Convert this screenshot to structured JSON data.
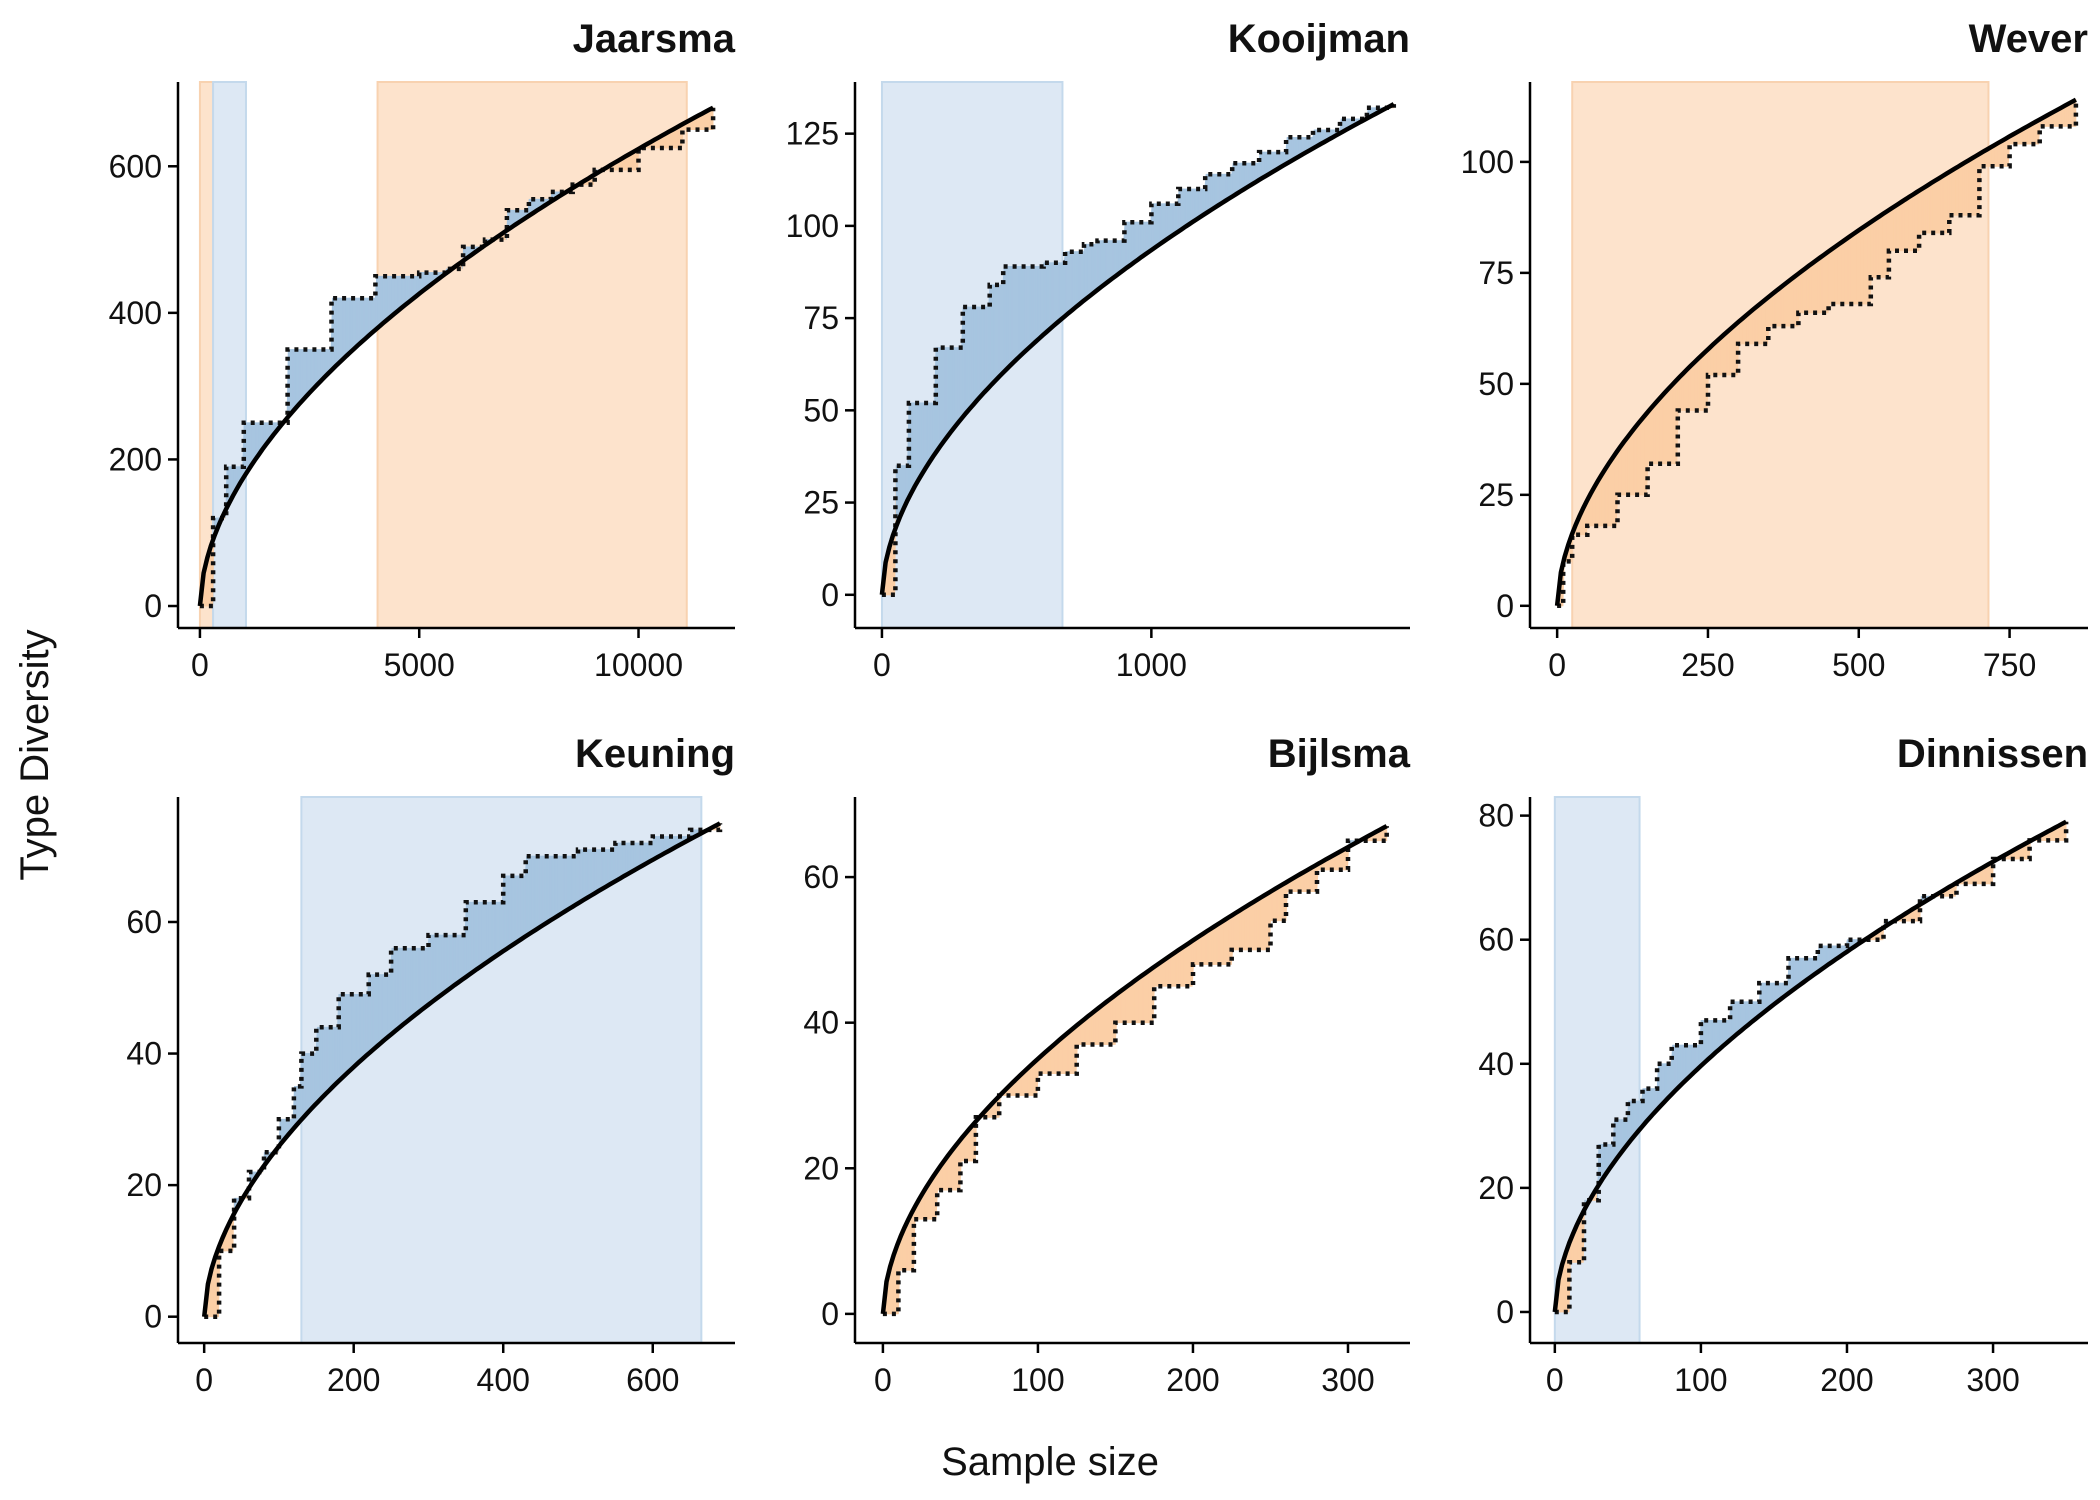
{
  "figure": {
    "xlabel": "Sample size",
    "ylabel": "Type Diversity"
  },
  "colors": {
    "curve": "#000000",
    "observed": "#111111",
    "above_fill": "#a7c5e0",
    "below_fill": "#fbcfa6",
    "above_span": "#dde8f4",
    "below_span": "#fde3cc"
  },
  "chart_data": [
    {
      "type": "line",
      "title": "Jaarsma",
      "xlim": [
        -500,
        12200
      ],
      "ylim": [
        -30,
        715
      ],
      "xticks": [
        0,
        5000,
        10000
      ],
      "yticks": [
        0,
        200,
        400,
        600
      ],
      "x_max": 11700,
      "y_max": 680,
      "observed": [
        [
          0,
          0
        ],
        [
          300,
          120
        ],
        [
          600,
          190
        ],
        [
          1000,
          250
        ],
        [
          2000,
          350
        ],
        [
          3000,
          420
        ],
        [
          4000,
          450
        ],
        [
          4500,
          450
        ],
        [
          5000,
          455
        ],
        [
          5600,
          460
        ],
        [
          6000,
          490
        ],
        [
          6500,
          500
        ],
        [
          7000,
          540
        ],
        [
          7500,
          555
        ],
        [
          8000,
          565
        ],
        [
          8500,
          575
        ],
        [
          9000,
          595
        ],
        [
          10000,
          625
        ],
        [
          11000,
          650
        ],
        [
          11700,
          680
        ]
      ],
      "spans": [
        {
          "kind": "below",
          "x": [
            0,
            300
          ]
        },
        {
          "kind": "above",
          "x": [
            300,
            1050
          ]
        },
        {
          "kind": "below",
          "x": [
            4050,
            11100
          ]
        }
      ]
    },
    {
      "type": "line",
      "title": "Kooijman",
      "xlim": [
        -100,
        1960
      ],
      "ylim": [
        -9,
        139
      ],
      "xticks": [
        0,
        1000
      ],
      "yticks": [
        0,
        25,
        50,
        75,
        100,
        125
      ],
      "x_max": 1900,
      "y_max": 133,
      "observed": [
        [
          0,
          0
        ],
        [
          50,
          35
        ],
        [
          100,
          52
        ],
        [
          200,
          67
        ],
        [
          300,
          78
        ],
        [
          400,
          84
        ],
        [
          450,
          89
        ],
        [
          500,
          89
        ],
        [
          600,
          90
        ],
        [
          680,
          93
        ],
        [
          750,
          95
        ],
        [
          800,
          96
        ],
        [
          900,
          101
        ],
        [
          1000,
          106
        ],
        [
          1100,
          110
        ],
        [
          1200,
          114
        ],
        [
          1300,
          117
        ],
        [
          1400,
          120
        ],
        [
          1500,
          124
        ],
        [
          1600,
          126
        ],
        [
          1700,
          129
        ],
        [
          1800,
          132
        ],
        [
          1900,
          133
        ]
      ],
      "spans": [
        {
          "kind": "above",
          "x": [
            0,
            670
          ]
        }
      ]
    },
    {
      "type": "line",
      "title": "Wever",
      "xlim": [
        -45,
        880
      ],
      "ylim": [
        -5,
        118
      ],
      "xticks": [
        0,
        250,
        500,
        750
      ],
      "yticks": [
        0,
        25,
        50,
        75,
        100
      ],
      "x_max": 860,
      "y_max": 114,
      "observed": [
        [
          0,
          0
        ],
        [
          10,
          10
        ],
        [
          25,
          16
        ],
        [
          50,
          18
        ],
        [
          100,
          25
        ],
        [
          150,
          32
        ],
        [
          200,
          44
        ],
        [
          250,
          52
        ],
        [
          300,
          59
        ],
        [
          350,
          63
        ],
        [
          400,
          66
        ],
        [
          450,
          68
        ],
        [
          500,
          68
        ],
        [
          520,
          74
        ],
        [
          550,
          80
        ],
        [
          600,
          84
        ],
        [
          650,
          88
        ],
        [
          700,
          99
        ],
        [
          750,
          104
        ],
        [
          800,
          108
        ],
        [
          860,
          114
        ]
      ],
      "spans": [
        {
          "kind": "below",
          "x": [
            25,
            715
          ]
        }
      ]
    },
    {
      "type": "line",
      "title": "Keuning",
      "xlim": [
        -35,
        710
      ],
      "ylim": [
        -4,
        79
      ],
      "xticks": [
        0,
        200,
        400,
        600
      ],
      "yticks": [
        0,
        20,
        40,
        60
      ],
      "x_max": 690,
      "y_max": 75,
      "observed": [
        [
          0,
          0
        ],
        [
          20,
          10
        ],
        [
          40,
          18
        ],
        [
          60,
          22
        ],
        [
          80,
          25
        ],
        [
          100,
          30
        ],
        [
          120,
          35
        ],
        [
          130,
          40
        ],
        [
          150,
          44
        ],
        [
          180,
          49
        ],
        [
          220,
          52
        ],
        [
          250,
          56
        ],
        [
          300,
          58
        ],
        [
          350,
          63
        ],
        [
          400,
          67
        ],
        [
          430,
          70
        ],
        [
          500,
          71
        ],
        [
          550,
          72
        ],
        [
          600,
          73
        ],
        [
          650,
          74
        ],
        [
          690,
          75
        ]
      ],
      "spans": [
        {
          "kind": "above",
          "x": [
            130,
            665
          ]
        }
      ]
    },
    {
      "type": "line",
      "title": "Bijlsma",
      "xlim": [
        -18,
        340
      ],
      "ylim": [
        -4,
        71
      ],
      "xticks": [
        0,
        100,
        200,
        300
      ],
      "yticks": [
        0,
        20,
        40,
        60
      ],
      "x_max": 325,
      "y_max": 67,
      "observed": [
        [
          0,
          0
        ],
        [
          10,
          6
        ],
        [
          20,
          13
        ],
        [
          35,
          17
        ],
        [
          50,
          21
        ],
        [
          60,
          27
        ],
        [
          75,
          30
        ],
        [
          100,
          33
        ],
        [
          125,
          37
        ],
        [
          150,
          40
        ],
        [
          175,
          45
        ],
        [
          200,
          48
        ],
        [
          225,
          50
        ],
        [
          250,
          54
        ],
        [
          260,
          58
        ],
        [
          280,
          61
        ],
        [
          300,
          65
        ],
        [
          325,
          67
        ]
      ],
      "spans": []
    },
    {
      "type": "line",
      "title": "Dinnissen",
      "xlim": [
        -17,
        365
      ],
      "ylim": [
        -5,
        83
      ],
      "xticks": [
        0,
        100,
        200,
        300
      ],
      "yticks": [
        0,
        20,
        40,
        60,
        80
      ],
      "x_max": 350,
      "y_max": 79,
      "observed": [
        [
          0,
          0
        ],
        [
          10,
          8
        ],
        [
          20,
          18
        ],
        [
          30,
          27
        ],
        [
          40,
          31
        ],
        [
          50,
          34
        ],
        [
          60,
          36
        ],
        [
          70,
          40
        ],
        [
          80,
          43
        ],
        [
          100,
          47
        ],
        [
          120,
          50
        ],
        [
          140,
          53
        ],
        [
          160,
          57
        ],
        [
          180,
          59
        ],
        [
          200,
          60
        ],
        [
          225,
          63
        ],
        [
          250,
          67
        ],
        [
          275,
          69
        ],
        [
          300,
          73
        ],
        [
          325,
          76
        ],
        [
          350,
          79
        ]
      ],
      "spans": [
        {
          "kind": "above",
          "x": [
            0,
            58
          ]
        }
      ]
    }
  ]
}
